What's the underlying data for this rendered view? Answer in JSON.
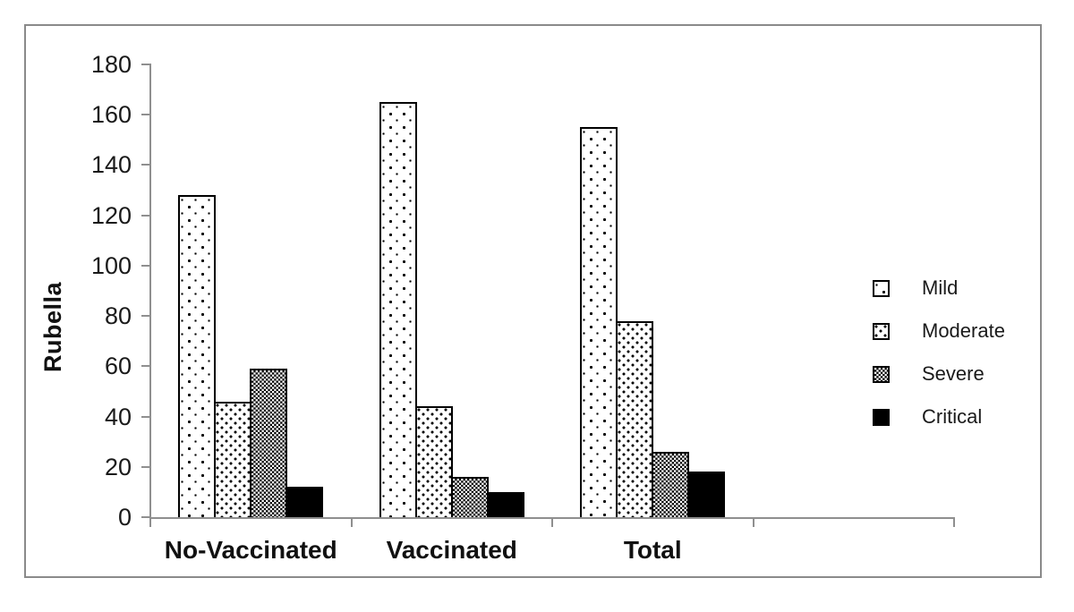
{
  "figure": {
    "background": "#ffffff",
    "border_color": "#8a8a8a",
    "axis_color": "#8f8f8f",
    "bar_outline_color": "#000000"
  },
  "chart_data": {
    "type": "bar",
    "title": "",
    "xlabel": "",
    "ylabel": "Rubella",
    "categories": [
      "No-Vaccinated",
      "Vaccinated",
      "Total"
    ],
    "series": [
      {
        "name": "Mild",
        "pattern": "dots-sparse",
        "values": [
          128,
          165,
          155
        ]
      },
      {
        "name": "Moderate",
        "pattern": "dots-medium",
        "values": [
          46,
          44,
          78
        ]
      },
      {
        "name": "Severe",
        "pattern": "checker-dense",
        "values": [
          59,
          16,
          26
        ]
      },
      {
        "name": "Critical",
        "pattern": "solid",
        "values": [
          12,
          10,
          18
        ]
      }
    ],
    "ylim": [
      0,
      180
    ],
    "yticks": [
      0,
      20,
      40,
      60,
      80,
      100,
      120,
      140,
      160,
      180
    ],
    "x_axis_slots": 4,
    "grid": false,
    "legend_position": "right"
  }
}
